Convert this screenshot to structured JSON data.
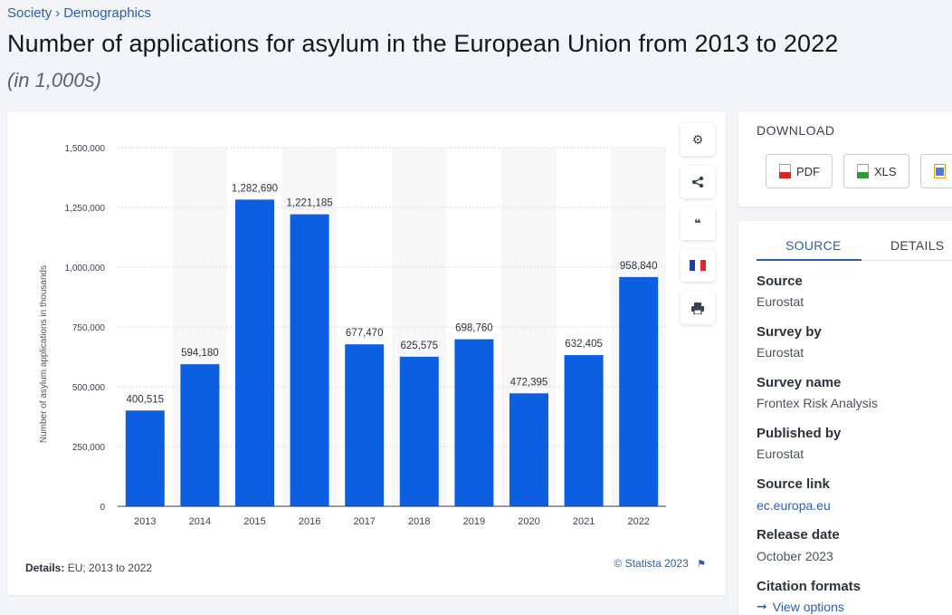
{
  "breadcrumb": {
    "items": [
      "Society",
      "Demographics"
    ],
    "separator": "›"
  },
  "title": "Number of applications for asylum in the European Union from 2013 to 2022",
  "subtitle": "(in 1,000s)",
  "chart_data": {
    "type": "bar",
    "categories": [
      "2013",
      "2014",
      "2015",
      "2016",
      "2017",
      "2018",
      "2019",
      "2020",
      "2021",
      "2022"
    ],
    "values": [
      400515,
      594180,
      1282690,
      1221185,
      677470,
      625575,
      698760,
      472395,
      632405,
      958840
    ],
    "value_labels": [
      "400,515",
      "594,180",
      "1,282,690",
      "1,221,185",
      "677,470",
      "625,575",
      "698,760",
      "472,395",
      "632,405",
      "958,840"
    ],
    "ylabel": "Number of asylum applications in thousands",
    "xlabel": "",
    "ylim": [
      0,
      1500000
    ],
    "yticks": [
      0,
      250000,
      500000,
      750000,
      1000000,
      1250000,
      1500000
    ],
    "ytick_labels": [
      "0",
      "250,000",
      "500,000",
      "750,000",
      "1,000,000",
      "1,250,000",
      "1,500,000"
    ],
    "grid": true,
    "bar_color": "#0b5fe0"
  },
  "details": {
    "label": "Details:",
    "text": "EU; 2013 to 2022"
  },
  "credit": {
    "text": "© Statista 2023",
    "icon": "flag-icon"
  },
  "toolbar": [
    {
      "name": "settings-button",
      "icon": "gear-icon",
      "glyph": "⚙"
    },
    {
      "name": "share-button",
      "icon": "share-icon",
      "glyph": "⋖"
    },
    {
      "name": "cite-button",
      "icon": "quote-icon",
      "glyph": "❝"
    },
    {
      "name": "language-button",
      "icon": "french-flag-icon",
      "glyph": ""
    },
    {
      "name": "print-button",
      "icon": "printer-icon",
      "glyph": "⎙"
    }
  ],
  "download": {
    "title": "DOWNLOAD",
    "buttons": [
      {
        "label": "PDF",
        "color": "#d9281e"
      },
      {
        "label": "XLS",
        "color": "#2e9b3a"
      },
      {
        "label": "",
        "color": "#e0a020"
      }
    ]
  },
  "source_panel": {
    "tabs": [
      "SOURCE",
      "DETAILS"
    ],
    "active_tab": "SOURCE",
    "fields": [
      {
        "label": "Source",
        "value": "Eurostat"
      },
      {
        "label": "Survey by",
        "value": "Eurostat"
      },
      {
        "label": "Survey name",
        "value": "Frontex Risk Analysis"
      },
      {
        "label": "Published by",
        "value": "Eurostat"
      },
      {
        "label": "Source link",
        "value": "ec.europa.eu"
      },
      {
        "label": "Release date",
        "value": "October 2023"
      },
      {
        "label": "Citation formats",
        "value": ""
      }
    ],
    "view_options": "View options"
  },
  "colors": {
    "accent": "#2a5fad",
    "bar": "#0b5fe0"
  }
}
